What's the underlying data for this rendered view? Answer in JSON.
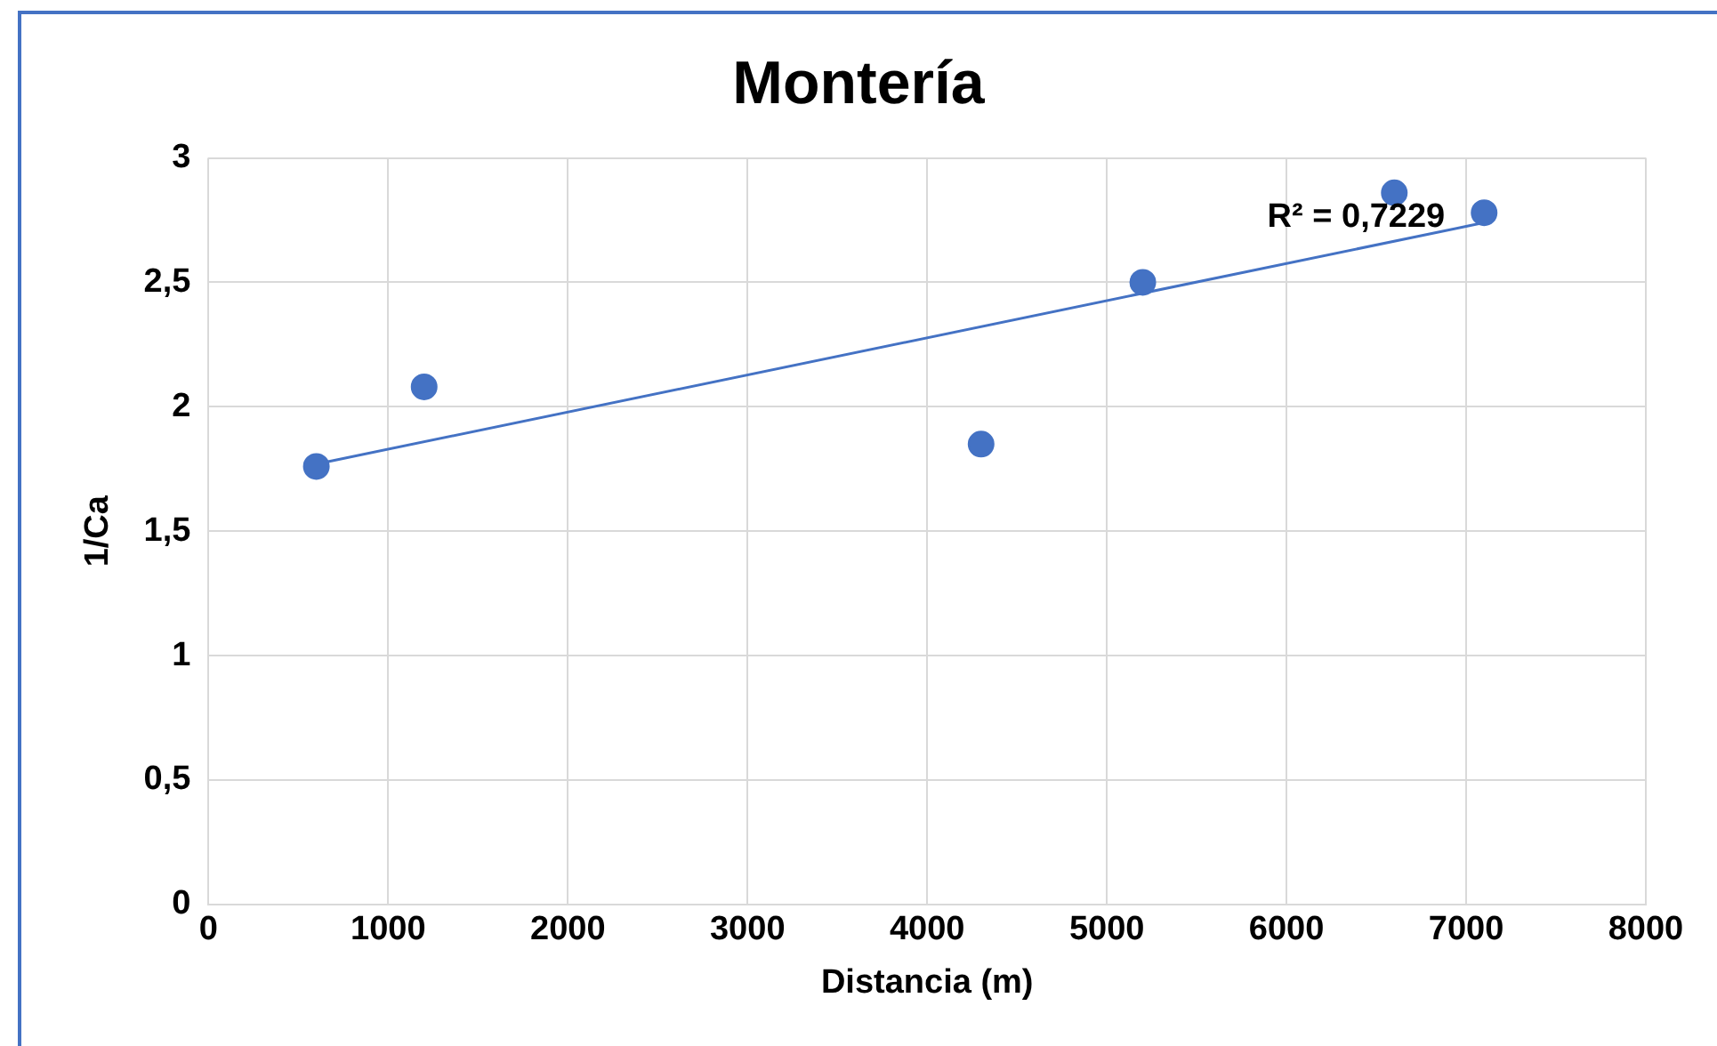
{
  "chart_data": {
    "type": "scatter",
    "title": "Montería",
    "xlabel": "Distancia (m)",
    "ylabel": "1/Ca",
    "series": [
      {
        "color": "#4472c4",
        "marker": "circle",
        "x": [
          600,
          1200,
          4300,
          5200,
          6600,
          7100
        ],
        "values": [
          1.76,
          2.08,
          1.85,
          2.5,
          2.86,
          2.78
        ]
      },
      {
        "type": "line",
        "marker": "none",
        "color": "#4472c4",
        "x": [
          600,
          7100
        ],
        "values": [
          1.77,
          2.74
        ]
      }
    ],
    "xlim": [
      0,
      8000
    ],
    "xticks": [
      0,
      1000,
      2000,
      3000,
      4000,
      5000,
      6000,
      7000,
      8000
    ],
    "ylim": [
      0,
      3
    ],
    "yticks": [
      0,
      {
        "value": 0.5,
        "label": "0,5"
      },
      1,
      {
        "value": 1.5,
        "label": "1,5"
      },
      2,
      {
        "value": 2.5,
        "label": "2,5"
      },
      3
    ],
    "annotations": [
      "R² = 0,7229"
    ],
    "grid": true,
    "legend": false,
    "line_style": "solid"
  }
}
